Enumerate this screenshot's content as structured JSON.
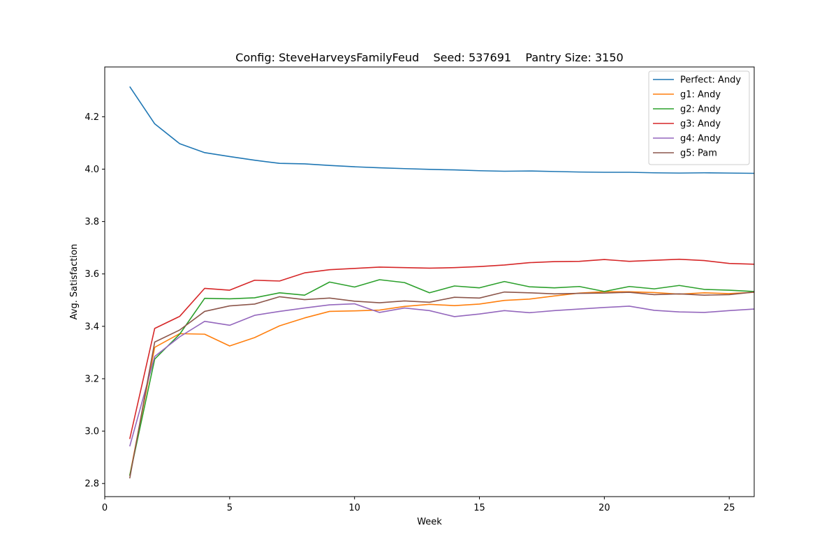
{
  "chart_data": {
    "type": "line",
    "title": "Config: SteveHarveysFamilyFeud    Seed: 537691    Pantry Size: 3150",
    "xlabel": "Week",
    "ylabel": "Avg. Satisfaction",
    "xlim": [
      0,
      26
    ],
    "ylim": [
      2.75,
      4.39
    ],
    "xticks": [
      0,
      5,
      10,
      15,
      20,
      25
    ],
    "yticks": [
      2.8,
      3.0,
      3.2,
      3.4,
      3.6,
      3.8,
      4.0,
      4.2
    ],
    "grid": false,
    "legend_position": "top-right",
    "x": [
      1,
      2,
      3,
      4,
      5,
      6,
      7,
      8,
      9,
      10,
      11,
      12,
      13,
      14,
      15,
      16,
      17,
      18,
      19,
      20,
      21,
      22,
      23,
      24,
      25,
      26
    ],
    "series": [
      {
        "name": "Perfect: Andy",
        "color": "#1f77b4",
        "values": [
          4.315,
          4.173,
          4.097,
          4.063,
          4.048,
          4.034,
          4.022,
          4.02,
          4.014,
          4.009,
          4.005,
          4.002,
          3.999,
          3.997,
          3.994,
          3.992,
          3.993,
          3.991,
          3.989,
          3.988,
          3.988,
          3.986,
          3.985,
          3.986,
          3.985,
          3.984
        ]
      },
      {
        "name": "g1: Andy",
        "color": "#ff7f0e",
        "values": [
          2.83,
          3.32,
          3.372,
          3.37,
          3.325,
          3.357,
          3.402,
          3.432,
          3.457,
          3.459,
          3.462,
          3.476,
          3.484,
          3.479,
          3.485,
          3.499,
          3.504,
          3.516,
          3.527,
          3.532,
          3.532,
          3.529,
          3.523,
          3.528,
          3.525,
          3.53
        ]
      },
      {
        "name": "g2: Andy",
        "color": "#2ca02c",
        "values": [
          2.83,
          3.275,
          3.37,
          3.507,
          3.505,
          3.509,
          3.528,
          3.519,
          3.569,
          3.55,
          3.578,
          3.567,
          3.528,
          3.554,
          3.547,
          3.571,
          3.551,
          3.547,
          3.552,
          3.533,
          3.552,
          3.543,
          3.556,
          3.541,
          3.538,
          3.533
        ]
      },
      {
        "name": "g3: Andy",
        "color": "#d62728",
        "values": [
          2.97,
          3.392,
          3.438,
          3.545,
          3.538,
          3.576,
          3.573,
          3.604,
          3.616,
          3.621,
          3.626,
          3.624,
          3.622,
          3.624,
          3.628,
          3.634,
          3.643,
          3.647,
          3.648,
          3.655,
          3.648,
          3.652,
          3.656,
          3.651,
          3.64,
          3.637
        ]
      },
      {
        "name": "g4: Andy",
        "color": "#9467bd",
        "values": [
          2.942,
          3.285,
          3.36,
          3.419,
          3.404,
          3.442,
          3.457,
          3.47,
          3.482,
          3.486,
          3.453,
          3.47,
          3.46,
          3.437,
          3.447,
          3.46,
          3.452,
          3.46,
          3.466,
          3.472,
          3.477,
          3.461,
          3.455,
          3.453,
          3.46,
          3.466
        ]
      },
      {
        "name": "g5: Pam",
        "color": "#8c564b",
        "values": [
          2.82,
          3.34,
          3.386,
          3.457,
          3.478,
          3.485,
          3.513,
          3.502,
          3.508,
          3.496,
          3.49,
          3.497,
          3.492,
          3.511,
          3.508,
          3.531,
          3.528,
          3.524,
          3.526,
          3.527,
          3.53,
          3.521,
          3.524,
          3.519,
          3.521,
          3.531
        ]
      }
    ]
  }
}
